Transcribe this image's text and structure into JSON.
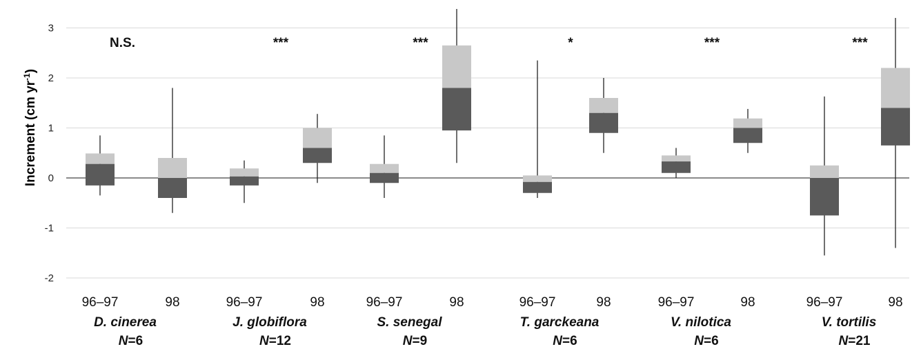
{
  "chart_data": {
    "type": "box",
    "ylabel": "Increment (cm yr",
    "ylabel_sup": "-1",
    "ylabel_close": ")",
    "ylim": [
      -2,
      3.4
    ],
    "yticks": [
      3,
      2,
      1,
      0,
      -1,
      -2
    ],
    "colors": {
      "upper_box": "#c8c8c8",
      "lower_box": "#5a5a5a",
      "whisker": "#222222",
      "grid": "#d9d9d9",
      "zero_line": "#444444"
    },
    "groups": [
      {
        "species": "D. cinerea",
        "n_label": "N",
        "n_value": "=6",
        "significance": "N.S.",
        "boxes": [
          {
            "label": "96–97",
            "q1": -0.15,
            "median": 0.28,
            "q3": 0.49,
            "min": -0.35,
            "max": 0.85
          },
          {
            "label": "98",
            "q1": -0.4,
            "median": 0.0,
            "q3": 0.4,
            "min": -0.7,
            "max": 1.8
          }
        ]
      },
      {
        "species": "J. globiflora",
        "n_label": "N",
        "n_value": "=12",
        "significance": "***",
        "boxes": [
          {
            "label": "96–97",
            "q1": -0.15,
            "median": 0.03,
            "q3": 0.19,
            "min": -0.5,
            "max": 0.35
          },
          {
            "label": "98",
            "q1": 0.3,
            "median": 0.6,
            "q3": 1.0,
            "min": -0.1,
            "max": 1.28
          }
        ]
      },
      {
        "species": "S. senegal",
        "n_label": "N",
        "n_value": "=9",
        "significance": "***",
        "boxes": [
          {
            "label": "96–97",
            "q1": -0.1,
            "median": 0.1,
            "q3": 0.28,
            "min": -0.4,
            "max": 0.85
          },
          {
            "label": "98",
            "q1": 0.95,
            "median": 1.8,
            "q3": 2.65,
            "min": 0.3,
            "max": 3.38
          }
        ]
      },
      {
        "species": "T. garckeana",
        "n_label": "N",
        "n_value": "=6",
        "significance": "*",
        "boxes": [
          {
            "label": "96–97",
            "q1": -0.3,
            "median": -0.08,
            "q3": 0.05,
            "min": -0.4,
            "max": 2.35
          },
          {
            "label": "98",
            "q1": 0.9,
            "median": 1.3,
            "q3": 1.6,
            "min": 0.5,
            "max": 2.0
          }
        ]
      },
      {
        "species": "V. nilotica",
        "n_label": "N",
        "n_value": "=6",
        "significance": "***",
        "boxes": [
          {
            "label": "96–97",
            "q1": 0.1,
            "median": 0.33,
            "q3": 0.45,
            "min": 0.0,
            "max": 0.6
          },
          {
            "label": "98",
            "q1": 0.7,
            "median": 1.0,
            "q3": 1.19,
            "min": 0.5,
            "max": 1.38
          }
        ]
      },
      {
        "species": "V. tortilis",
        "n_label": "N",
        "n_value": "=21",
        "significance": "***",
        "boxes": [
          {
            "label": "96–97",
            "q1": -0.75,
            "median": 0.0,
            "q3": 0.25,
            "min": -1.55,
            "max": 1.63
          },
          {
            "label": "98",
            "q1": 0.65,
            "median": 1.4,
            "q3": 2.2,
            "min": -1.4,
            "max": 3.2
          }
        ]
      }
    ]
  }
}
